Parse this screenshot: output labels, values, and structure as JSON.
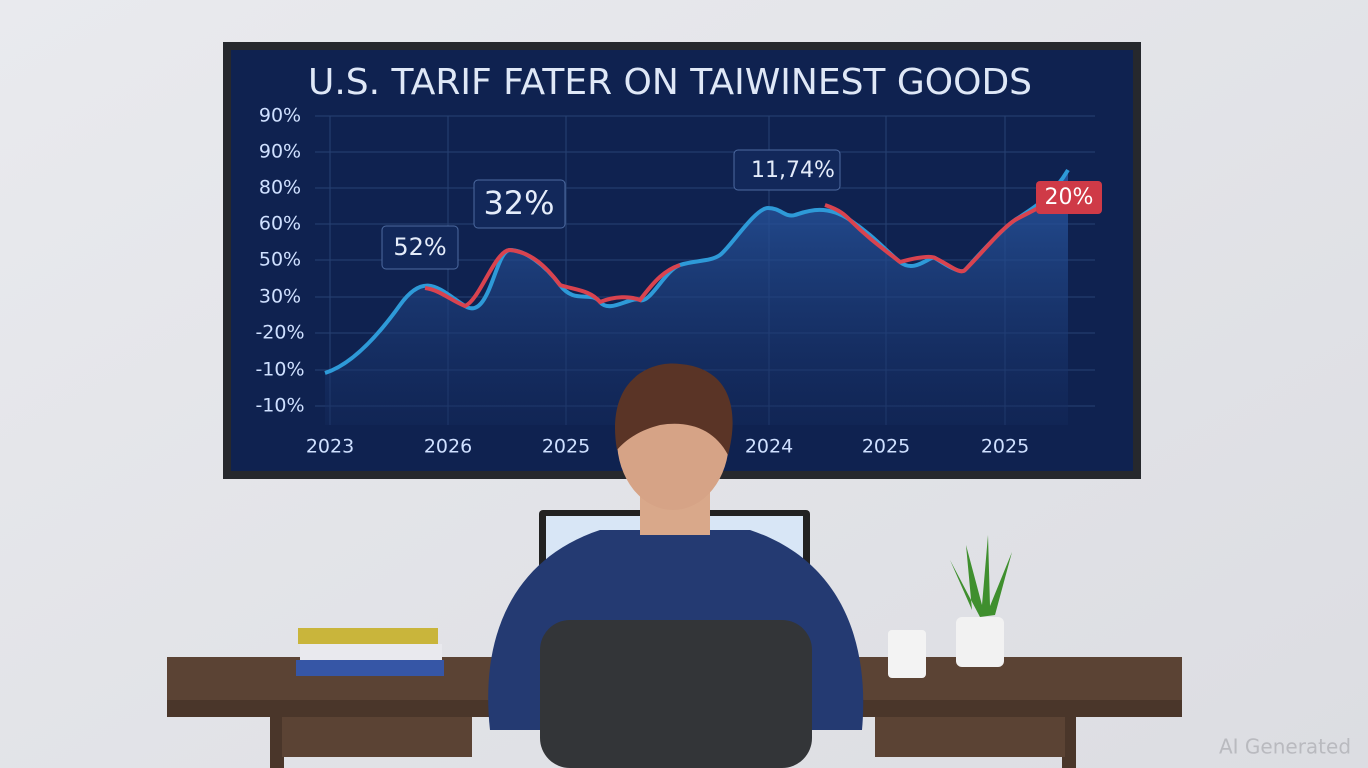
{
  "screen": {
    "title": "U.S. TARIF FATER ON TAIWINEST GOODS",
    "y_axis_labels": [
      "90%",
      "90%",
      "80%",
      "60%",
      "50%",
      "30%",
      "-20%",
      "-10%",
      "-10%"
    ],
    "x_axis_labels": [
      "2023",
      "2026",
      "2025",
      "2024",
      "2025",
      "2025"
    ],
    "callouts": [
      "52%",
      "32%",
      "11,74%",
      "20%"
    ]
  },
  "watermark": "AI Generated"
}
